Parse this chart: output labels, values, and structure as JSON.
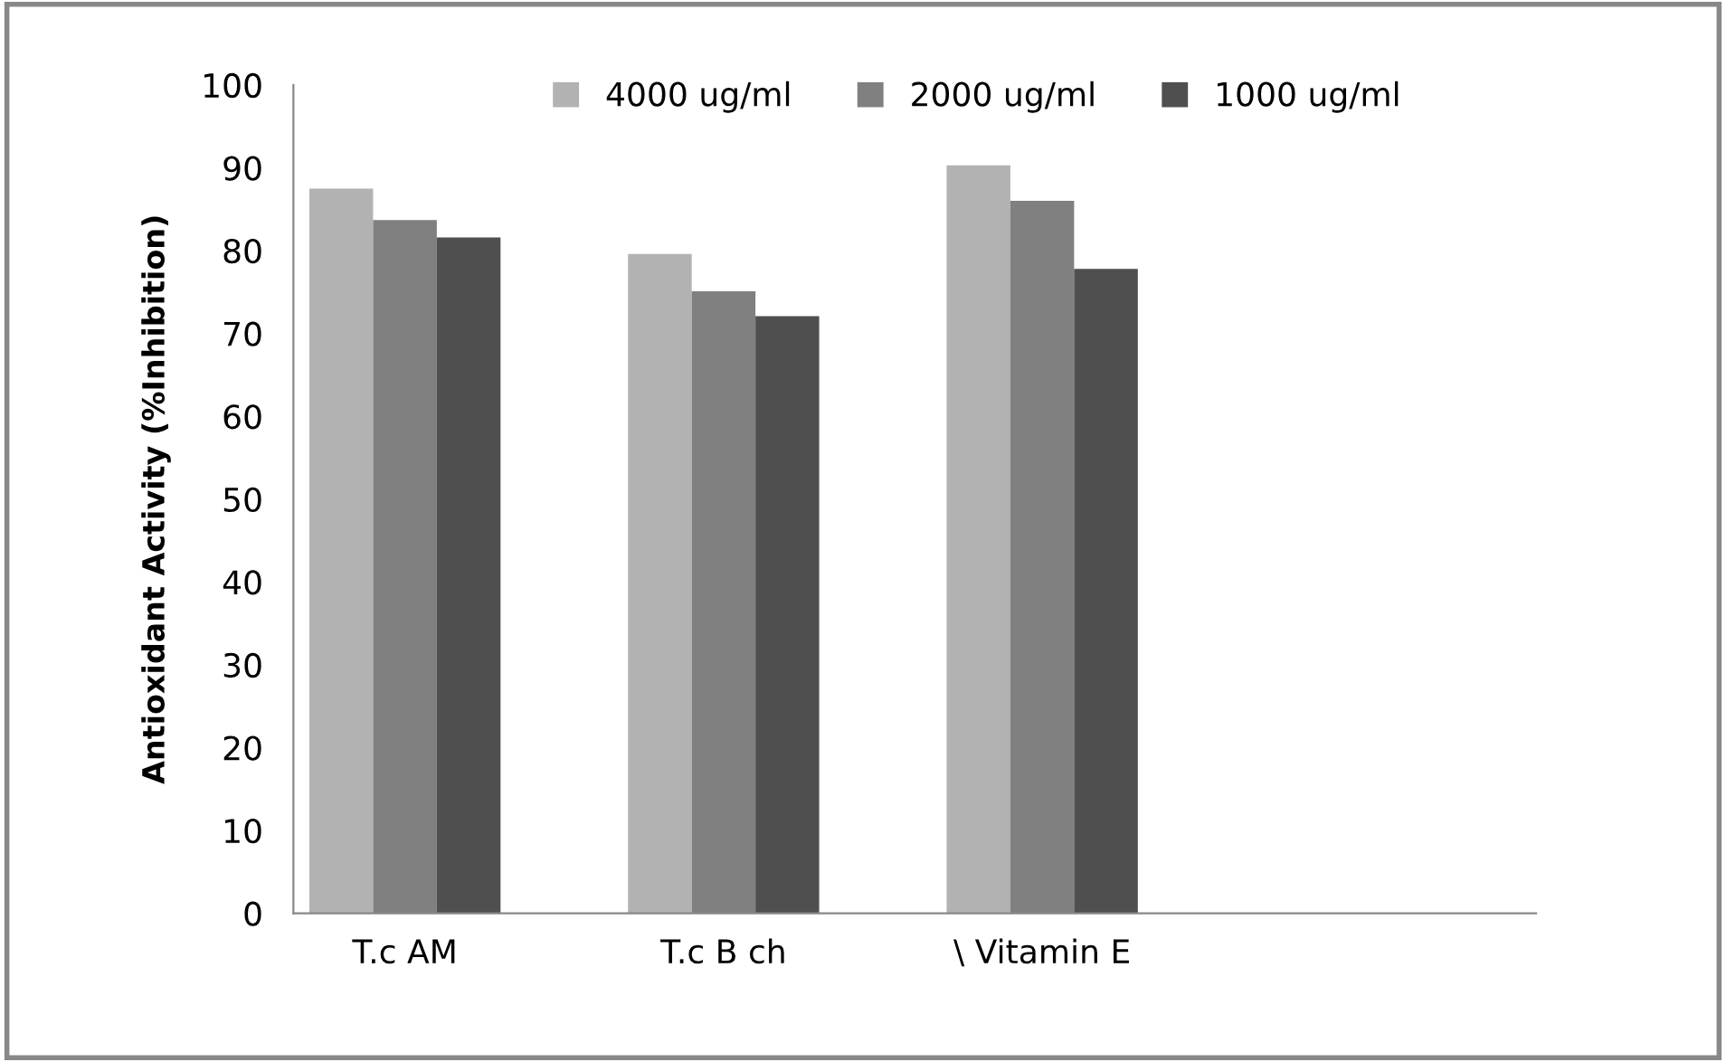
{
  "chart_data": {
    "type": "bar",
    "ylabel": "Antioxidant Activity (%Inhibition)",
    "categories": [
      "T.c AM",
      "T.c B ch",
      "\\ Vitamin E"
    ],
    "series": [
      {
        "name": "4000 ug/ml",
        "color": "#b2b2b2",
        "values": [
          87.5,
          79.6,
          90.3
        ]
      },
      {
        "name": "2000 ug/ml",
        "color": "#808080",
        "values": [
          83.7,
          75.1,
          86.0
        ]
      },
      {
        "name": "1000 ug/ml",
        "color": "#4f4f4f",
        "values": [
          81.6,
          72.1,
          77.8
        ]
      }
    ],
    "ylim": [
      0,
      100
    ],
    "yticks": [
      0,
      10,
      20,
      30,
      40,
      50,
      60,
      70,
      80,
      90,
      100
    ],
    "grid": false,
    "legend": "top"
  }
}
